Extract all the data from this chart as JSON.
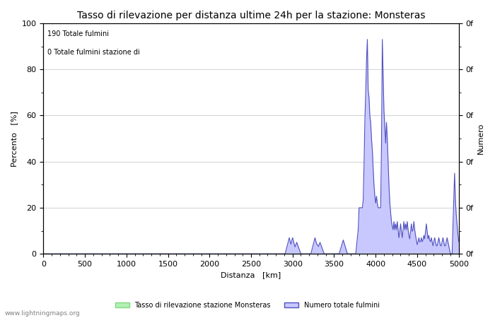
{
  "title": "Tasso di rilevazione per distanza ultime 24h per la stazione: Monsteras",
  "xlabel": "Distanza   [km]",
  "ylabel_left": "Percento   [%]",
  "ylabel_right": "Numero",
  "annotation_lines": [
    "190 Totale fulmini",
    "0 Totale fulmini stazione di"
  ],
  "xlim": [
    0,
    5000
  ],
  "ylim_left": [
    0,
    100
  ],
  "xticks": [
    0,
    500,
    1000,
    1500,
    2000,
    2500,
    3000,
    3500,
    4000,
    4500,
    5000
  ],
  "yticks_left": [
    0,
    20,
    40,
    60,
    80,
    100
  ],
  "yticks_right_labels": [
    "0f",
    "0f",
    "0f",
    "0f",
    "0f",
    "0f"
  ],
  "yticks_right_positions": [
    0,
    20,
    40,
    60,
    80,
    100
  ],
  "color_green_fill": "#b2f0b2",
  "color_green_line": "#80d880",
  "color_blue_fill": "#c8c8ff",
  "color_blue_line": "#5050c0",
  "legend_label_green": "Tasso di rilevazione stazione Monsteras",
  "legend_label_blue": "Numero totale fulmini",
  "watermark": "www.lightningmaps.org",
  "bg_color": "#ffffff",
  "grid_color": "#c0c0c0",
  "font_size": 8,
  "title_font_size": 10
}
